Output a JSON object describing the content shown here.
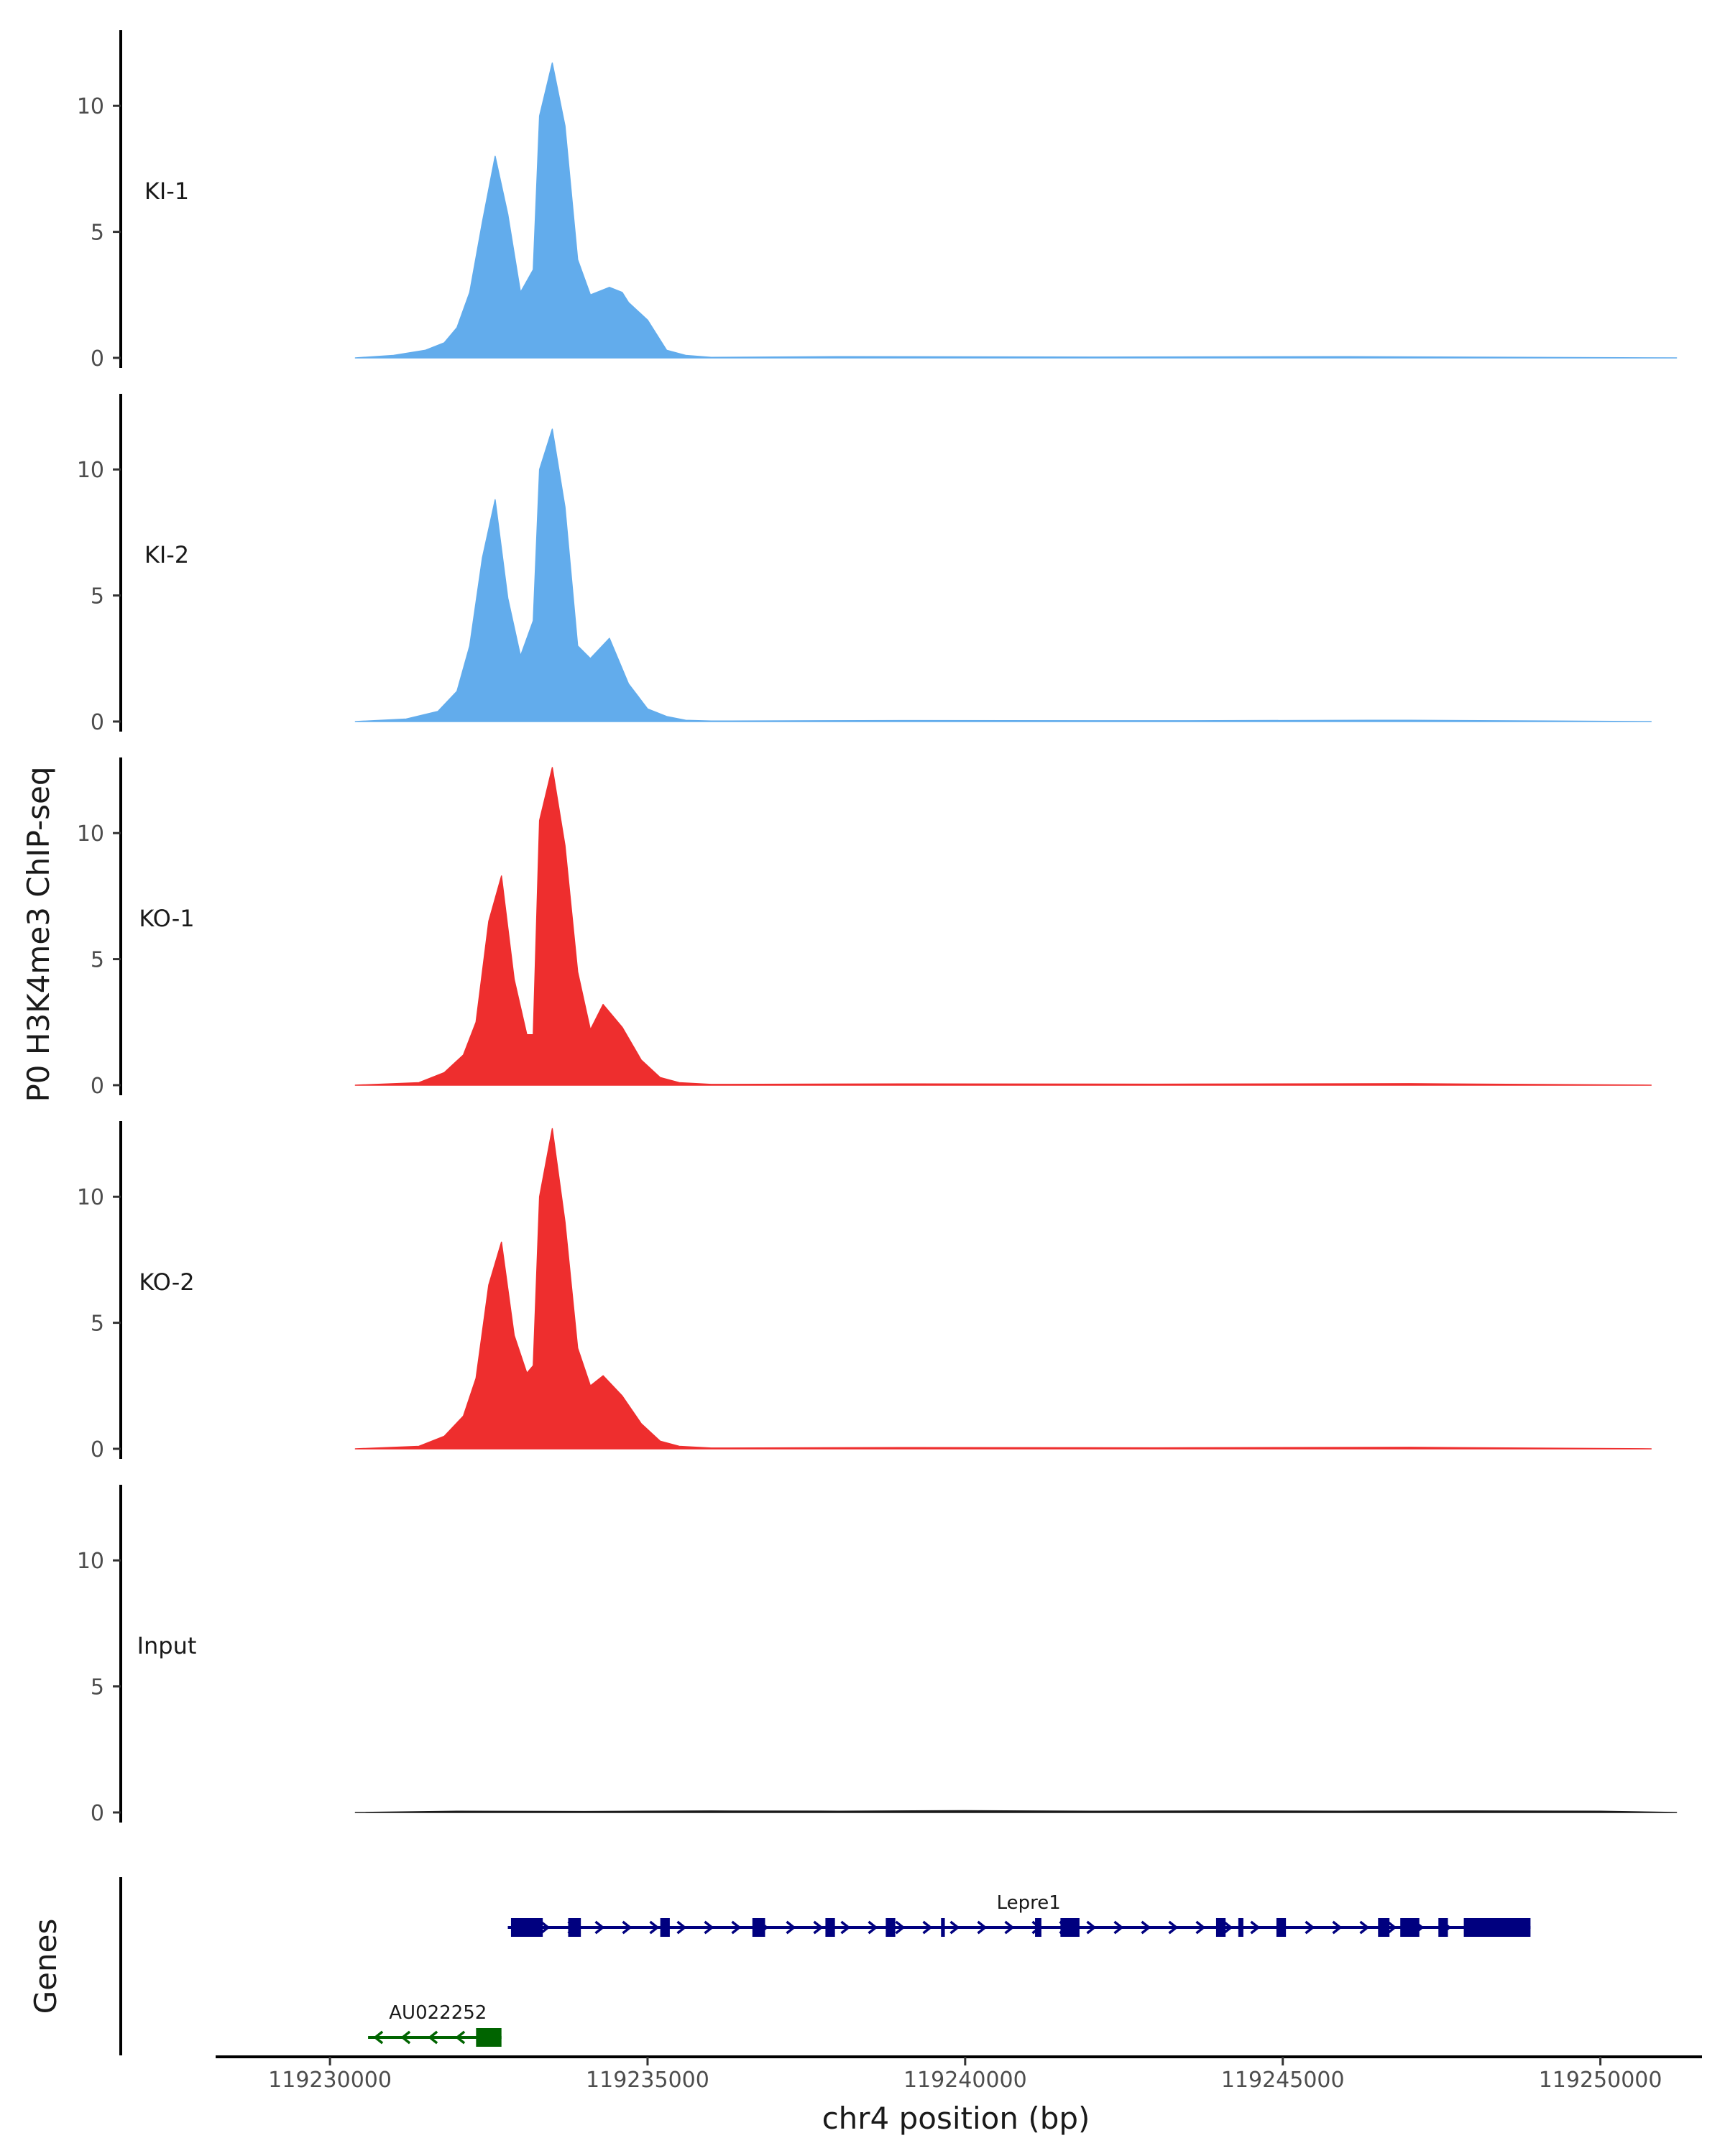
{
  "chart_data": {
    "type": "area",
    "title": "",
    "ylabel": "P0 H3K4me3 ChIP-seq",
    "xlabel": "chr4 position (bp)",
    "xlim": [
      119228200,
      119251600
    ],
    "ylim": [
      -0.4,
      13
    ],
    "y_ticks": [
      0,
      5,
      10
    ],
    "x_ticks": [
      {
        "value": 119230000,
        "label": "119230000"
      },
      {
        "value": 119235000,
        "label": "119235000"
      },
      {
        "value": 119240000,
        "label": "119240000"
      },
      {
        "value": 119245000,
        "label": "119245000"
      },
      {
        "value": 119250000,
        "label": "119250000"
      }
    ],
    "colors": {
      "KI": "#62ACEC",
      "KO": "#EE2E2E",
      "Input": "#1a1a1a",
      "gene_plus": "#00007F",
      "gene_minus": "#006400"
    },
    "series": [
      {
        "name": "KI-1",
        "color": "#62ACEC",
        "x": [
          119230400,
          119231000,
          119231500,
          119231800,
          119232000,
          119232200,
          119232400,
          119232600,
          119232800,
          119233000,
          119233200,
          119233300,
          119233500,
          119233700,
          119233900,
          119234100,
          119234400,
          119234600,
          119234700,
          119235000,
          119235300,
          119235600,
          119236000,
          119238000,
          119242000,
          119246000,
          119251200
        ],
        "values": [
          0,
          0.1,
          0.3,
          0.6,
          1.2,
          2.6,
          5.4,
          8.0,
          5.7,
          2.6,
          3.5,
          9.6,
          11.7,
          9.2,
          3.9,
          2.5,
          2.8,
          2.6,
          2.2,
          1.5,
          0.3,
          0.1,
          0.02,
          0.05,
          0.03,
          0.05,
          0
        ]
      },
      {
        "name": "KI-2",
        "color": "#62ACEC",
        "x": [
          119230400,
          119231200,
          119231700,
          119232000,
          119232200,
          119232400,
          119232600,
          119232800,
          119233000,
          119233200,
          119233300,
          119233500,
          119233700,
          119233900,
          119234100,
          119234400,
          119234700,
          119235000,
          119235300,
          119235600,
          119236000,
          119239000,
          119243000,
          119247000,
          119250800
        ],
        "values": [
          0,
          0.1,
          0.4,
          1.2,
          3.0,
          6.5,
          8.8,
          4.9,
          2.6,
          4.0,
          10.0,
          11.6,
          8.5,
          3.0,
          2.5,
          3.3,
          1.5,
          0.5,
          0.2,
          0.05,
          0.02,
          0.04,
          0.03,
          0.05,
          0
        ]
      },
      {
        "name": "KO-1",
        "color": "#EE2E2E",
        "x": [
          119230400,
          119231400,
          119231800,
          119232100,
          119232300,
          119232500,
          119232700,
          119232900,
          119233100,
          119233200,
          119233300,
          119233500,
          119233700,
          119233900,
          119234100,
          119234300,
          119234600,
          119234900,
          119235200,
          119235500,
          119236000,
          119239000,
          119243000,
          119247000,
          119250800
        ],
        "values": [
          0,
          0.1,
          0.5,
          1.2,
          2.5,
          6.5,
          8.3,
          4.2,
          2.0,
          2.0,
          10.5,
          12.6,
          9.5,
          4.5,
          2.2,
          3.2,
          2.3,
          1.0,
          0.3,
          0.1,
          0.03,
          0.05,
          0.04,
          0.06,
          0
        ]
      },
      {
        "name": "KO-2",
        "color": "#EE2E2E",
        "x": [
          119230400,
          119231400,
          119231800,
          119232100,
          119232300,
          119232500,
          119232700,
          119232900,
          119233100,
          119233200,
          119233300,
          119233500,
          119233700,
          119233900,
          119234100,
          119234300,
          119234600,
          119234900,
          119235200,
          119235500,
          119236000,
          119239000,
          119243000,
          119247000,
          119250800
        ],
        "values": [
          0,
          0.1,
          0.5,
          1.3,
          2.8,
          6.5,
          8.2,
          4.5,
          3.0,
          3.3,
          10.0,
          12.7,
          9.0,
          4.0,
          2.5,
          2.9,
          2.1,
          1.0,
          0.3,
          0.1,
          0.03,
          0.05,
          0.04,
          0.06,
          0
        ]
      },
      {
        "name": "Input",
        "color": "#1a1a1a",
        "x": [
          119230400,
          119232000,
          119234000,
          119236000,
          119238000,
          119240000,
          119242000,
          119244000,
          119246000,
          119248000,
          119250000,
          119251200
        ],
        "values": [
          0,
          0.05,
          0.04,
          0.06,
          0.05,
          0.07,
          0.05,
          0.06,
          0.05,
          0.06,
          0.05,
          0
        ]
      }
    ],
    "genes_label": "Genes",
    "genes": [
      {
        "name": "AU022252",
        "strand": "-",
        "color": "#006400",
        "start": 119230600,
        "end": 119232700,
        "exons": [
          [
            119232300,
            119232700
          ]
        ]
      },
      {
        "name": "Lepre1",
        "strand": "+",
        "color": "#00007F",
        "start": 119232800,
        "end": 119248900,
        "exons": [
          [
            119232850,
            119233350
          ],
          [
            119233750,
            119233950
          ],
          [
            119235200,
            119235350
          ],
          [
            119236650,
            119236850
          ],
          [
            119237800,
            119237950
          ],
          [
            119238750,
            119238900
          ],
          [
            119239620,
            119239680
          ],
          [
            119241100,
            119241200
          ],
          [
            119241500,
            119241800
          ],
          [
            119243950,
            119244100
          ],
          [
            119244300,
            119244380
          ],
          [
            119244900,
            119245050
          ],
          [
            119246500,
            119246680
          ],
          [
            119246850,
            119247150
          ],
          [
            119247450,
            119247600
          ],
          [
            119247850,
            119248900
          ]
        ]
      }
    ]
  }
}
